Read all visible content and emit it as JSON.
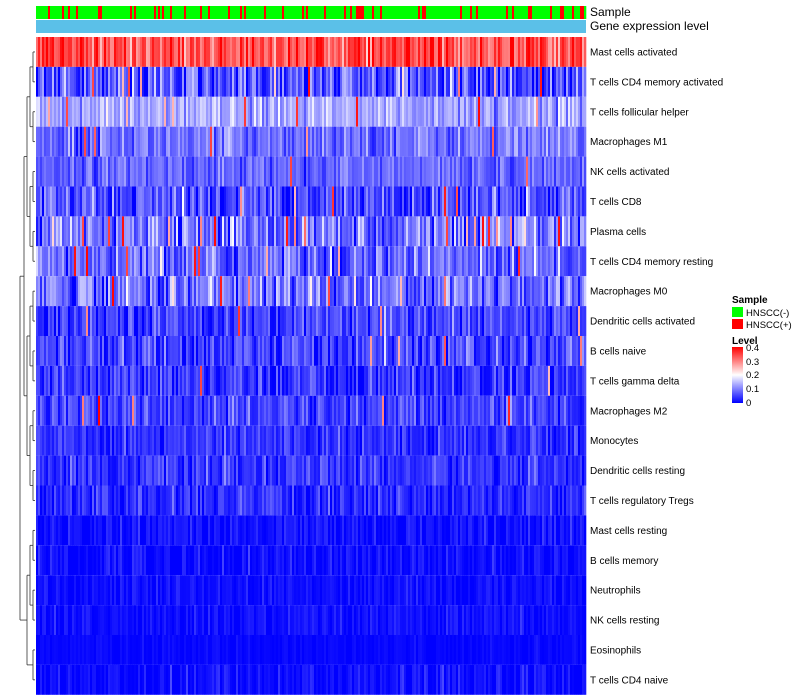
{
  "chart_data": {
    "type": "heatmap",
    "title": "",
    "annotation_tracks": [
      {
        "name": "Sample",
        "label": "Sample"
      },
      {
        "name": "Gene expression level",
        "label": "Gene expression level",
        "color": "#5BC0E8"
      }
    ],
    "n_samples": 275,
    "rows": [
      {
        "label": "Mast cells activated",
        "mean": 0.34,
        "spread": 0.07,
        "hot_prob": 0.02
      },
      {
        "label": "T cells CD4 memory activated",
        "mean": 0.06,
        "spread": 0.09,
        "hot_prob": 0.03
      },
      {
        "label": "T cells follicular helper",
        "mean": 0.13,
        "spread": 0.05,
        "hot_prob": 0.02
      },
      {
        "label": "Macrophages M1",
        "mean": 0.09,
        "spread": 0.05,
        "hot_prob": 0.01
      },
      {
        "label": "NK cells activated",
        "mean": 0.08,
        "spread": 0.04,
        "hot_prob": 0.01
      },
      {
        "label": "T cells CD8",
        "mean": 0.06,
        "spread": 0.07,
        "hot_prob": 0.02
      },
      {
        "label": "Plasma cells",
        "mean": 0.09,
        "spread": 0.08,
        "hot_prob": 0.05
      },
      {
        "label": "T cells CD4 memory resting",
        "mean": 0.08,
        "spread": 0.07,
        "hot_prob": 0.03
      },
      {
        "label": "Macrophages M0",
        "mean": 0.09,
        "spread": 0.08,
        "hot_prob": 0.04
      },
      {
        "label": "Dendritic cells activated",
        "mean": 0.05,
        "spread": 0.05,
        "hot_prob": 0.01
      },
      {
        "label": "B cells naive",
        "mean": 0.05,
        "spread": 0.06,
        "hot_prob": 0.01
      },
      {
        "label": "T cells gamma delta",
        "mean": 0.04,
        "spread": 0.05,
        "hot_prob": 0.01
      },
      {
        "label": "Macrophages M2",
        "mean": 0.05,
        "spread": 0.05,
        "hot_prob": 0.01
      },
      {
        "label": "Monocytes",
        "mean": 0.04,
        "spread": 0.04,
        "hot_prob": 0.0
      },
      {
        "label": "Dendritic cells resting",
        "mean": 0.04,
        "spread": 0.04,
        "hot_prob": 0.0
      },
      {
        "label": "T cells regulatory  Tregs",
        "mean": 0.03,
        "spread": 0.04,
        "hot_prob": 0.0
      },
      {
        "label": "Mast cells resting",
        "mean": 0.01,
        "spread": 0.03,
        "hot_prob": 0.0
      },
      {
        "label": "B cells memory",
        "mean": 0.01,
        "spread": 0.03,
        "hot_prob": 0.0
      },
      {
        "label": "Neutrophils",
        "mean": 0.01,
        "spread": 0.02,
        "hot_prob": 0.0
      },
      {
        "label": "NK cells resting",
        "mean": 0.01,
        "spread": 0.02,
        "hot_prob": 0.0
      },
      {
        "label": "Eosinophils",
        "mean": 0.005,
        "spread": 0.01,
        "hot_prob": 0.0
      },
      {
        "label": "T cells CD4 naive",
        "mean": 0.01,
        "spread": 0.03,
        "hot_prob": 0.0
      }
    ],
    "sample_groups": [
      {
        "label": "HNSCC(-)",
        "color": "#00FF00",
        "fraction": 0.78
      },
      {
        "label": "HNSCC(+)",
        "color": "#FF0000",
        "fraction": 0.22
      }
    ],
    "legend": {
      "sample_title": "Sample",
      "level_title": "Level",
      "level_ticks": [
        "0.4",
        "0.3",
        "0.2",
        "0.1",
        "0"
      ],
      "level_range": [
        0,
        0.4
      ],
      "placement": "right",
      "colors": {
        "low": "#0000FF",
        "mid": "#FFFFFF",
        "high": "#FF0000"
      }
    }
  }
}
